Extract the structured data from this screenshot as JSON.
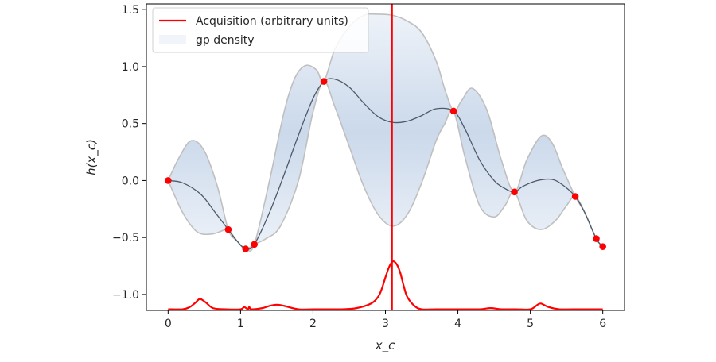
{
  "chart_data": {
    "type": "line",
    "title": "",
    "xlabel": "x_c",
    "ylabel": "h(x_c)",
    "xlim": [
      -0.3,
      6.3
    ],
    "ylim": [
      -1.14,
      1.55
    ],
    "grid": false,
    "legend_placement": "top-left",
    "xticks": [
      0,
      1,
      2,
      3,
      4,
      5,
      6
    ],
    "xtick_labels": [
      "0",
      "1",
      "2",
      "3",
      "4",
      "5",
      "6"
    ],
    "yticks": [
      -1.0,
      -0.5,
      0.0,
      0.5,
      1.0,
      1.5
    ],
    "ytick_labels": [
      "−1.0",
      "−0.5",
      "0.0",
      "0.5",
      "1.0",
      "1.5"
    ],
    "legend": [
      {
        "label": "Acquisition (arbitrary units)",
        "color": "#ff0000"
      },
      {
        "label": "gp density",
        "color": "#c6d6ea"
      }
    ],
    "observations": {
      "color": "#ff0000",
      "x": [
        0.0,
        0.83,
        1.07,
        1.19,
        2.15,
        3.94,
        4.78,
        5.62,
        5.91,
        6.0
      ],
      "y": [
        0.0,
        -0.43,
        -0.6,
        -0.56,
        0.87,
        0.61,
        -0.1,
        -0.14,
        -0.51,
        -0.58
      ]
    },
    "gp_mean": {
      "color": "#4d5a6a",
      "x": [
        0.0,
        0.2,
        0.45,
        0.65,
        0.83,
        0.95,
        1.07,
        1.19,
        1.4,
        1.6,
        1.8,
        2.0,
        2.15,
        2.3,
        2.5,
        2.7,
        2.9,
        3.1,
        3.3,
        3.5,
        3.7,
        3.94,
        4.1,
        4.3,
        4.5,
        4.65,
        4.78,
        4.9,
        5.1,
        5.3,
        5.45,
        5.62,
        5.75,
        5.91,
        6.0
      ],
      "y": [
        0.0,
        -0.02,
        -0.12,
        -0.28,
        -0.43,
        -0.53,
        -0.6,
        -0.56,
        -0.28,
        0.05,
        0.4,
        0.72,
        0.87,
        0.89,
        0.82,
        0.68,
        0.56,
        0.51,
        0.52,
        0.57,
        0.63,
        0.61,
        0.45,
        0.18,
        0.0,
        -0.07,
        -0.1,
        -0.05,
        0.0,
        0.01,
        -0.04,
        -0.14,
        -0.28,
        -0.51,
        -0.58
      ]
    },
    "gp_upper": {
      "color": "#bfbfbf",
      "x": [
        0.0,
        0.15,
        0.32,
        0.5,
        0.68,
        0.83,
        0.95,
        1.07,
        1.19,
        1.4,
        1.6,
        1.75,
        1.9,
        2.05,
        2.15,
        2.3,
        2.5,
        2.7,
        2.9,
        3.1,
        3.3,
        3.5,
        3.7,
        3.82,
        3.94,
        4.05,
        4.2,
        4.4,
        4.6,
        4.78,
        4.95,
        5.15,
        5.3,
        5.45,
        5.62,
        5.75,
        5.91,
        6.0
      ],
      "y": [
        0.0,
        0.2,
        0.35,
        0.26,
        -0.05,
        -0.43,
        -0.53,
        -0.6,
        -0.56,
        0.0,
        0.6,
        0.9,
        1.01,
        0.97,
        0.87,
        1.15,
        1.35,
        1.45,
        1.46,
        1.45,
        1.4,
        1.3,
        1.05,
        0.8,
        0.61,
        0.7,
        0.81,
        0.62,
        0.18,
        -0.1,
        0.18,
        0.39,
        0.33,
        0.1,
        -0.14,
        -0.28,
        -0.51,
        -0.58
      ]
    },
    "gp_lower": {
      "color": "#bfbfbf",
      "x": [
        0.0,
        0.2,
        0.4,
        0.6,
        0.75,
        0.83,
        0.95,
        1.07,
        1.19,
        1.35,
        1.55,
        1.8,
        2.0,
        2.15,
        2.3,
        2.5,
        2.7,
        2.9,
        3.1,
        3.3,
        3.5,
        3.7,
        3.82,
        3.94,
        4.1,
        4.3,
        4.5,
        4.65,
        4.78,
        4.95,
        5.15,
        5.35,
        5.5,
        5.62,
        5.75,
        5.91,
        6.0
      ],
      "y": [
        0.0,
        -0.28,
        -0.45,
        -0.47,
        -0.44,
        -0.43,
        -0.53,
        -0.6,
        -0.56,
        -0.51,
        -0.4,
        0.0,
        0.6,
        0.87,
        0.65,
        0.3,
        -0.05,
        -0.3,
        -0.4,
        -0.3,
        -0.02,
        0.35,
        0.5,
        0.61,
        0.2,
        -0.22,
        -0.32,
        -0.22,
        -0.1,
        -0.35,
        -0.43,
        -0.35,
        -0.22,
        -0.14,
        -0.28,
        -0.51,
        -0.58
      ]
    },
    "acquisition": {
      "color": "#ff0000",
      "x": [
        0.0,
        0.2,
        0.3,
        0.38,
        0.44,
        0.52,
        0.62,
        0.8,
        1.0,
        1.05,
        1.1,
        1.12,
        1.15,
        1.3,
        1.4,
        1.5,
        1.6,
        1.8,
        2.0,
        2.2,
        2.4,
        2.6,
        2.8,
        2.9,
        2.95,
        3.0,
        3.05,
        3.1,
        3.15,
        3.2,
        3.25,
        3.3,
        3.4,
        3.5,
        3.7,
        4.0,
        4.3,
        4.45,
        4.6,
        4.8,
        5.0,
        5.1,
        5.15,
        5.25,
        5.4,
        5.6,
        6.0
      ],
      "y": [
        -1.13,
        -1.13,
        -1.11,
        -1.07,
        -1.04,
        -1.07,
        -1.12,
        -1.13,
        -1.13,
        -1.11,
        -1.13,
        -1.11,
        -1.13,
        -1.12,
        -1.1,
        -1.09,
        -1.1,
        -1.13,
        -1.13,
        -1.13,
        -1.13,
        -1.12,
        -1.08,
        -1.02,
        -0.95,
        -0.85,
        -0.76,
        -0.71,
        -0.73,
        -0.8,
        -0.92,
        -1.02,
        -1.1,
        -1.13,
        -1.13,
        -1.13,
        -1.13,
        -1.12,
        -1.13,
        -1.13,
        -1.13,
        -1.09,
        -1.08,
        -1.11,
        -1.13,
        -1.13,
        -1.13
      ]
    },
    "next_sample_x": 3.09
  }
}
